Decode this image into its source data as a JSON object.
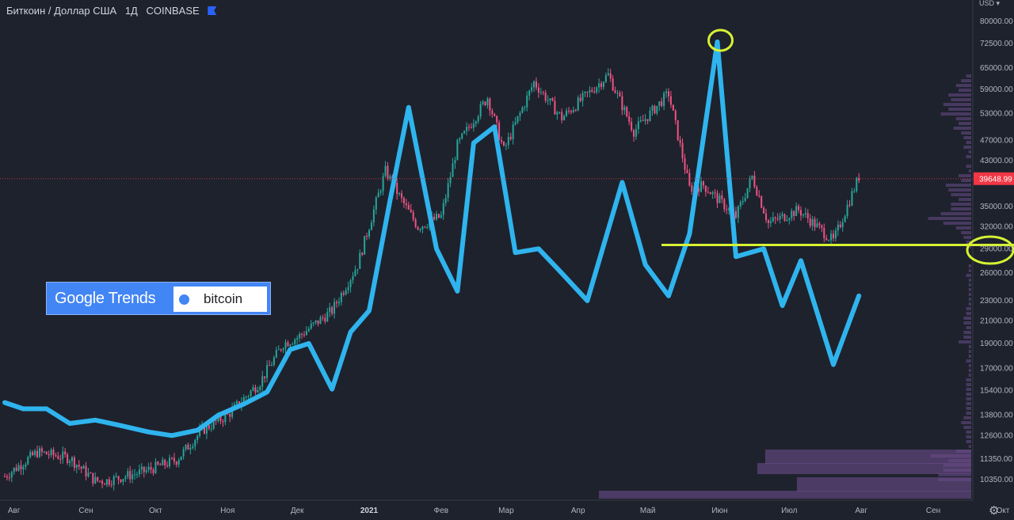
{
  "header": {
    "symbol": "Биткоин / Доллар США",
    "interval": "1Д",
    "exchange": "COINBASE",
    "currency": "USD"
  },
  "badge": {
    "logo": "Google Trends",
    "term": "bitcoin",
    "dot_color": "#4285f4"
  },
  "colors": {
    "background": "#1e222d",
    "up": "#26a69a",
    "down": "#ef5383",
    "trends_line": "#2fb4ee",
    "highlight": "#d6f233",
    "price_label": "#f23645"
  },
  "chart_data": {
    "type": "line",
    "title": "",
    "scale": "log",
    "ylim": [
      9500,
      88000
    ],
    "price_ticks": [
      80000,
      72500,
      65000,
      59000,
      53000,
      47000,
      43000,
      35000,
      32000,
      29000,
      26000,
      23000,
      21000,
      19000,
      17000,
      15400,
      13800,
      12600,
      11350,
      10350
    ],
    "price_tick_labels": [
      "80000.00",
      "72500.00",
      "65000.00",
      "59000.00",
      "53000.00",
      "47000.00",
      "43000.00",
      "35000.00",
      "32000.00",
      "29000.00",
      "26000.00",
      "23000.00",
      "21000.00",
      "19000.00",
      "17000.00",
      "15400.00",
      "13800.00",
      "12600.00",
      "11350.00",
      "10350.00"
    ],
    "time_labels": [
      "Авг",
      "Сен",
      "Окт",
      "Ноя",
      "Дек",
      "2021",
      "Фев",
      "Мар",
      "Апр",
      "Май",
      "Июн",
      "Июл",
      "Авг",
      "Сен",
      "Окт"
    ],
    "last_price": 39648.99,
    "last_price_label": "39648.99",
    "support_level": 29500,
    "series": [
      {
        "name": "BTC/USD",
        "style": "candles",
        "x": [
          "2020-07-28",
          "2020-08-11",
          "2020-08-25",
          "2020-09-05",
          "2020-09-10",
          "2020-09-25",
          "2020-10-10",
          "2020-10-21",
          "2020-11-01",
          "2020-11-15",
          "2020-11-25",
          "2020-12-01",
          "2020-12-16",
          "2020-12-27",
          "2021-01-08",
          "2021-01-15",
          "2021-01-22",
          "2021-02-01",
          "2021-02-08",
          "2021-02-21",
          "2021-02-28",
          "2021-03-13",
          "2021-03-25",
          "2021-04-14",
          "2021-04-25",
          "2021-05-10",
          "2021-05-19",
          "2021-05-25",
          "2021-06-08",
          "2021-06-15",
          "2021-06-22",
          "2021-07-05",
          "2021-07-20",
          "2021-07-31"
        ],
        "values": [
          10500,
          11700,
          11400,
          10300,
          10300,
          10700,
          11300,
          12900,
          13800,
          16000,
          19000,
          19500,
          22000,
          27000,
          41000,
          36000,
          32000,
          33500,
          46000,
          57000,
          45000,
          61000,
          52000,
          63000,
          49000,
          58000,
          38000,
          38500,
          33500,
          40000,
          32500,
          34500,
          30000,
          40000
        ]
      },
      {
        "name": "bitcoin",
        "style": "line",
        "x": [
          "2020-07-28",
          "2020-08-05",
          "2020-08-15",
          "2020-08-25",
          "2020-09-05",
          "2020-09-15",
          "2020-09-28",
          "2020-10-08",
          "2020-10-19",
          "2020-10-28",
          "2020-11-08",
          "2020-11-18",
          "2020-11-28",
          "2020-12-06",
          "2020-12-16",
          "2020-12-24",
          "2021-01-01",
          "2021-01-10",
          "2021-01-18",
          "2021-01-30",
          "2021-02-08",
          "2021-02-15",
          "2021-02-24",
          "2021-03-05",
          "2021-03-15",
          "2021-03-25",
          "2021-04-05",
          "2021-04-20",
          "2021-04-30",
          "2021-05-10",
          "2021-05-19",
          "2021-05-31",
          "2021-06-08",
          "2021-06-20",
          "2021-06-28",
          "2021-07-06",
          "2021-07-20",
          "2021-07-31"
        ],
        "values": [
          14600,
          14200,
          14200,
          13300,
          13500,
          13200,
          12800,
          12600,
          12900,
          13800,
          14500,
          15300,
          18500,
          19000,
          15500,
          20000,
          22000,
          36000,
          54500,
          29000,
          24000,
          46500,
          50000,
          28500,
          29000,
          26000,
          23000,
          39000,
          27000,
          23500,
          31000,
          73000,
          28000,
          29000,
          22500,
          27500,
          17300,
          23500
        ]
      }
    ]
  }
}
